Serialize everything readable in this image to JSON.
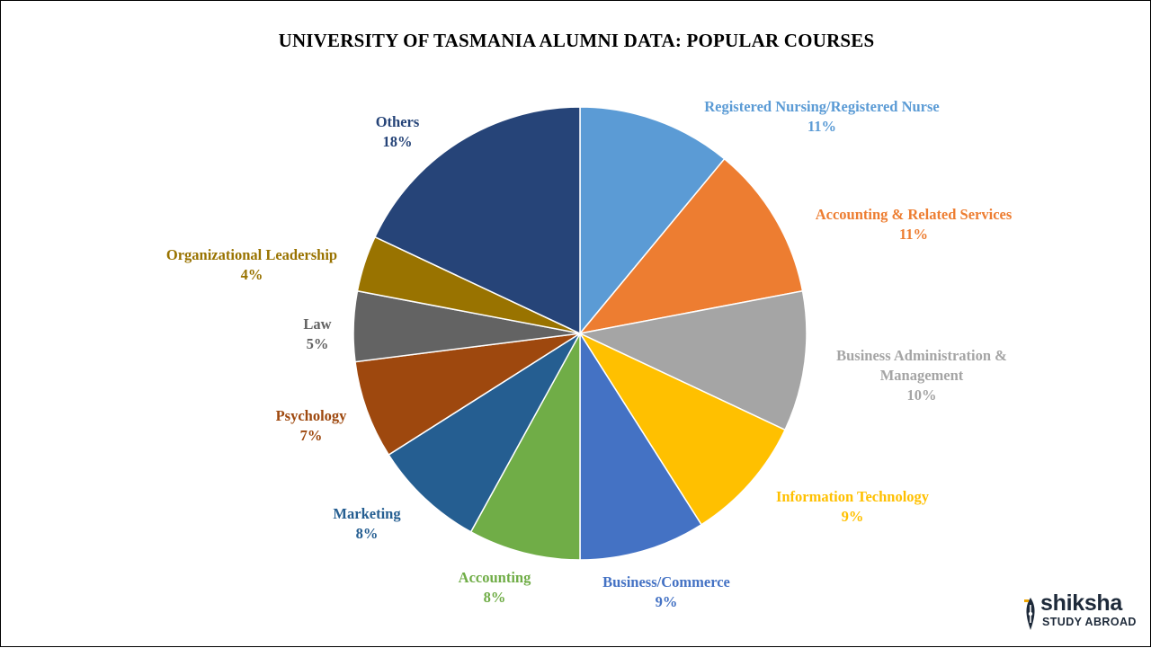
{
  "chart_data": {
    "type": "pie",
    "title": "UNIVERSITY  OF TASMANIA ALUMNI DATA: POPULAR COURSES",
    "unit": "%",
    "slices": [
      {
        "name": "Registered Nursing/Registered Nurse",
        "label_lines": [
          "Registered Nursing/Registered Nurse"
        ],
        "value": 11,
        "value_label": "11%",
        "color": "#5b9bd5"
      },
      {
        "name": "Accounting & Related Services",
        "label_lines": [
          "Accounting & Related Services"
        ],
        "value": 11,
        "value_label": "11%",
        "color": "#ed7d31"
      },
      {
        "name": "Business Administration & Management",
        "label_lines": [
          "Business Administration &",
          "Management"
        ],
        "value": 10,
        "value_label": "10%",
        "color": "#a5a5a5"
      },
      {
        "name": "Information Technology",
        "label_lines": [
          "Information Technology"
        ],
        "value": 9,
        "value_label": "9%",
        "color": "#ffc000"
      },
      {
        "name": "Business/Commerce",
        "label_lines": [
          "Business/Commerce"
        ],
        "value": 9,
        "value_label": "9%",
        "color": "#4472c4"
      },
      {
        "name": "Accounting",
        "label_lines": [
          "Accounting"
        ],
        "value": 8,
        "value_label": "8%",
        "color": "#70ad47"
      },
      {
        "name": "Marketing",
        "label_lines": [
          "Marketing"
        ],
        "value": 8,
        "value_label": "8%",
        "color": "#255e91"
      },
      {
        "name": "Psychology",
        "label_lines": [
          "Psychology"
        ],
        "value": 7,
        "value_label": "7%",
        "color": "#9e480e"
      },
      {
        "name": "Law",
        "label_lines": [
          "Law"
        ],
        "value": 5,
        "value_label": "5%",
        "color": "#636363"
      },
      {
        "name": "Organizational Leadership",
        "label_lines": [
          "Organizational Leadership"
        ],
        "value": 4,
        "value_label": "4%",
        "color": "#997300"
      },
      {
        "name": "Others",
        "label_lines": [
          "Others"
        ],
        "value": 18,
        "value_label": "18%",
        "color": "#264478"
      }
    ]
  },
  "logo": {
    "name": "shiksha",
    "tagline": "STUDY ABROAD",
    "icon": "pen-nib-icon"
  }
}
